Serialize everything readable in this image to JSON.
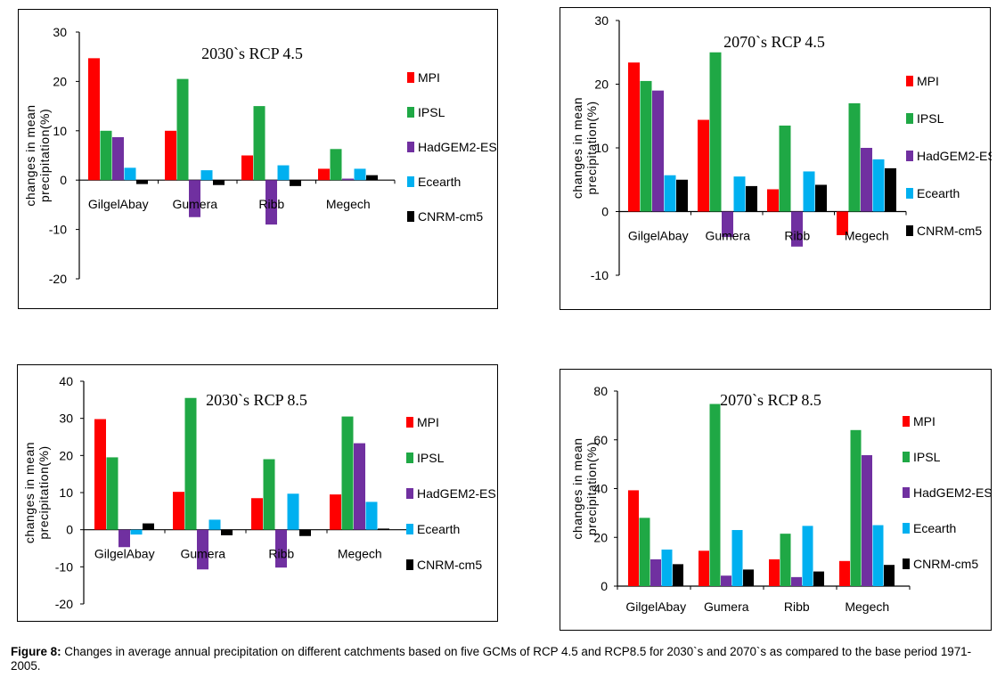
{
  "caption": {
    "label": "Figure 8:",
    "text": " Changes in average annual precipitation on different catchments based on five GCMs of RCP 4.5 and RCP8.5 for 2030`s and 2070`s as compared to the base period 1971-2005."
  },
  "colors": {
    "MPI": "#ff0000",
    "IPSL": "#1fa845",
    "HadGEM2-ES": "#7030a0",
    "Ecearth": "#00b0f0",
    "CNRM-cm5": "#000000"
  },
  "chart_data": [
    {
      "type": "bar",
      "title": "2030`s RCP 4.5",
      "ylabel": "changes in mean precipitation(%)",
      "categories": [
        "GilgelAbay",
        "Gumera",
        "Ribb",
        "Megech"
      ],
      "ylim": [
        -20,
        30
      ],
      "yticks": [
        -20,
        -10,
        0,
        10,
        20,
        30
      ],
      "series": [
        {
          "name": "MPI",
          "values": [
            24.7,
            10,
            5,
            2.3
          ]
        },
        {
          "name": "IPSL",
          "values": [
            10,
            20.5,
            15,
            6.3
          ]
        },
        {
          "name": "HadGEM2-ES",
          "values": [
            8.7,
            -7.5,
            -9,
            0.3
          ]
        },
        {
          "name": "Ecearth",
          "values": [
            2.5,
            2,
            3,
            2.3
          ]
        },
        {
          "name": "CNRM-cm5",
          "values": [
            -0.8,
            -1,
            -1.2,
            1
          ]
        }
      ]
    },
    {
      "type": "bar",
      "title": "2070`s RCP 4.5",
      "ylabel": "changes in mean precipitation(%)",
      "categories": [
        "GilgelAbay",
        "Gumera",
        "Ribb",
        "Megech"
      ],
      "ylim": [
        -10,
        30
      ],
      "yticks": [
        -10,
        0,
        10,
        20,
        30
      ],
      "series": [
        {
          "name": "MPI",
          "values": [
            23.4,
            14.4,
            3.5,
            -3.7
          ]
        },
        {
          "name": "IPSL",
          "values": [
            20.5,
            25,
            13.5,
            17
          ]
        },
        {
          "name": "HadGEM2-ES",
          "values": [
            19,
            -4,
            -5.5,
            10
          ]
        },
        {
          "name": "Ecearth",
          "values": [
            5.7,
            5.5,
            6.3,
            8.2
          ]
        },
        {
          "name": "CNRM-cm5",
          "values": [
            5,
            4,
            4.2,
            6.8
          ]
        }
      ]
    },
    {
      "type": "bar",
      "title": "2030`s RCP 8.5",
      "ylabel": "changes in mean precipitation(%)",
      "categories": [
        "GilgelAbay",
        "Gumera",
        "Ribb",
        "Megech"
      ],
      "ylim": [
        -20,
        40
      ],
      "yticks": [
        -20,
        -10,
        0,
        10,
        20,
        30,
        40
      ],
      "series": [
        {
          "name": "MPI",
          "values": [
            29.8,
            10.2,
            8.5,
            9.5
          ]
        },
        {
          "name": "IPSL",
          "values": [
            19.5,
            35.5,
            19,
            30.5
          ]
        },
        {
          "name": "HadGEM2-ES",
          "values": [
            -4.7,
            -10.7,
            -10.2,
            23.3
          ]
        },
        {
          "name": "Ecearth",
          "values": [
            -1.3,
            2.7,
            9.7,
            7.5
          ]
        },
        {
          "name": "CNRM-cm5",
          "values": [
            1.7,
            -1.5,
            -1.7,
            0.3
          ]
        }
      ]
    },
    {
      "type": "bar",
      "title": "2070`s RCP 8.5",
      "ylabel": "changes in mean precipitation(%)",
      "categories": [
        "GilgelAbay",
        "Gumera",
        "Ribb",
        "Megech"
      ],
      "ylim": [
        0,
        80
      ],
      "yticks": [
        0,
        20,
        40,
        60,
        80
      ],
      "series": [
        {
          "name": "MPI",
          "values": [
            39.3,
            14.5,
            11,
            10.3
          ]
        },
        {
          "name": "IPSL",
          "values": [
            28,
            74.7,
            21.5,
            64
          ]
        },
        {
          "name": "HadGEM2-ES",
          "values": [
            11,
            4.3,
            3.7,
            53.7
          ]
        },
        {
          "name": "Ecearth",
          "values": [
            15,
            23,
            24.7,
            25
          ]
        },
        {
          "name": "CNRM-cm5",
          "values": [
            9,
            6.8,
            6,
            8.7
          ]
        }
      ]
    }
  ]
}
